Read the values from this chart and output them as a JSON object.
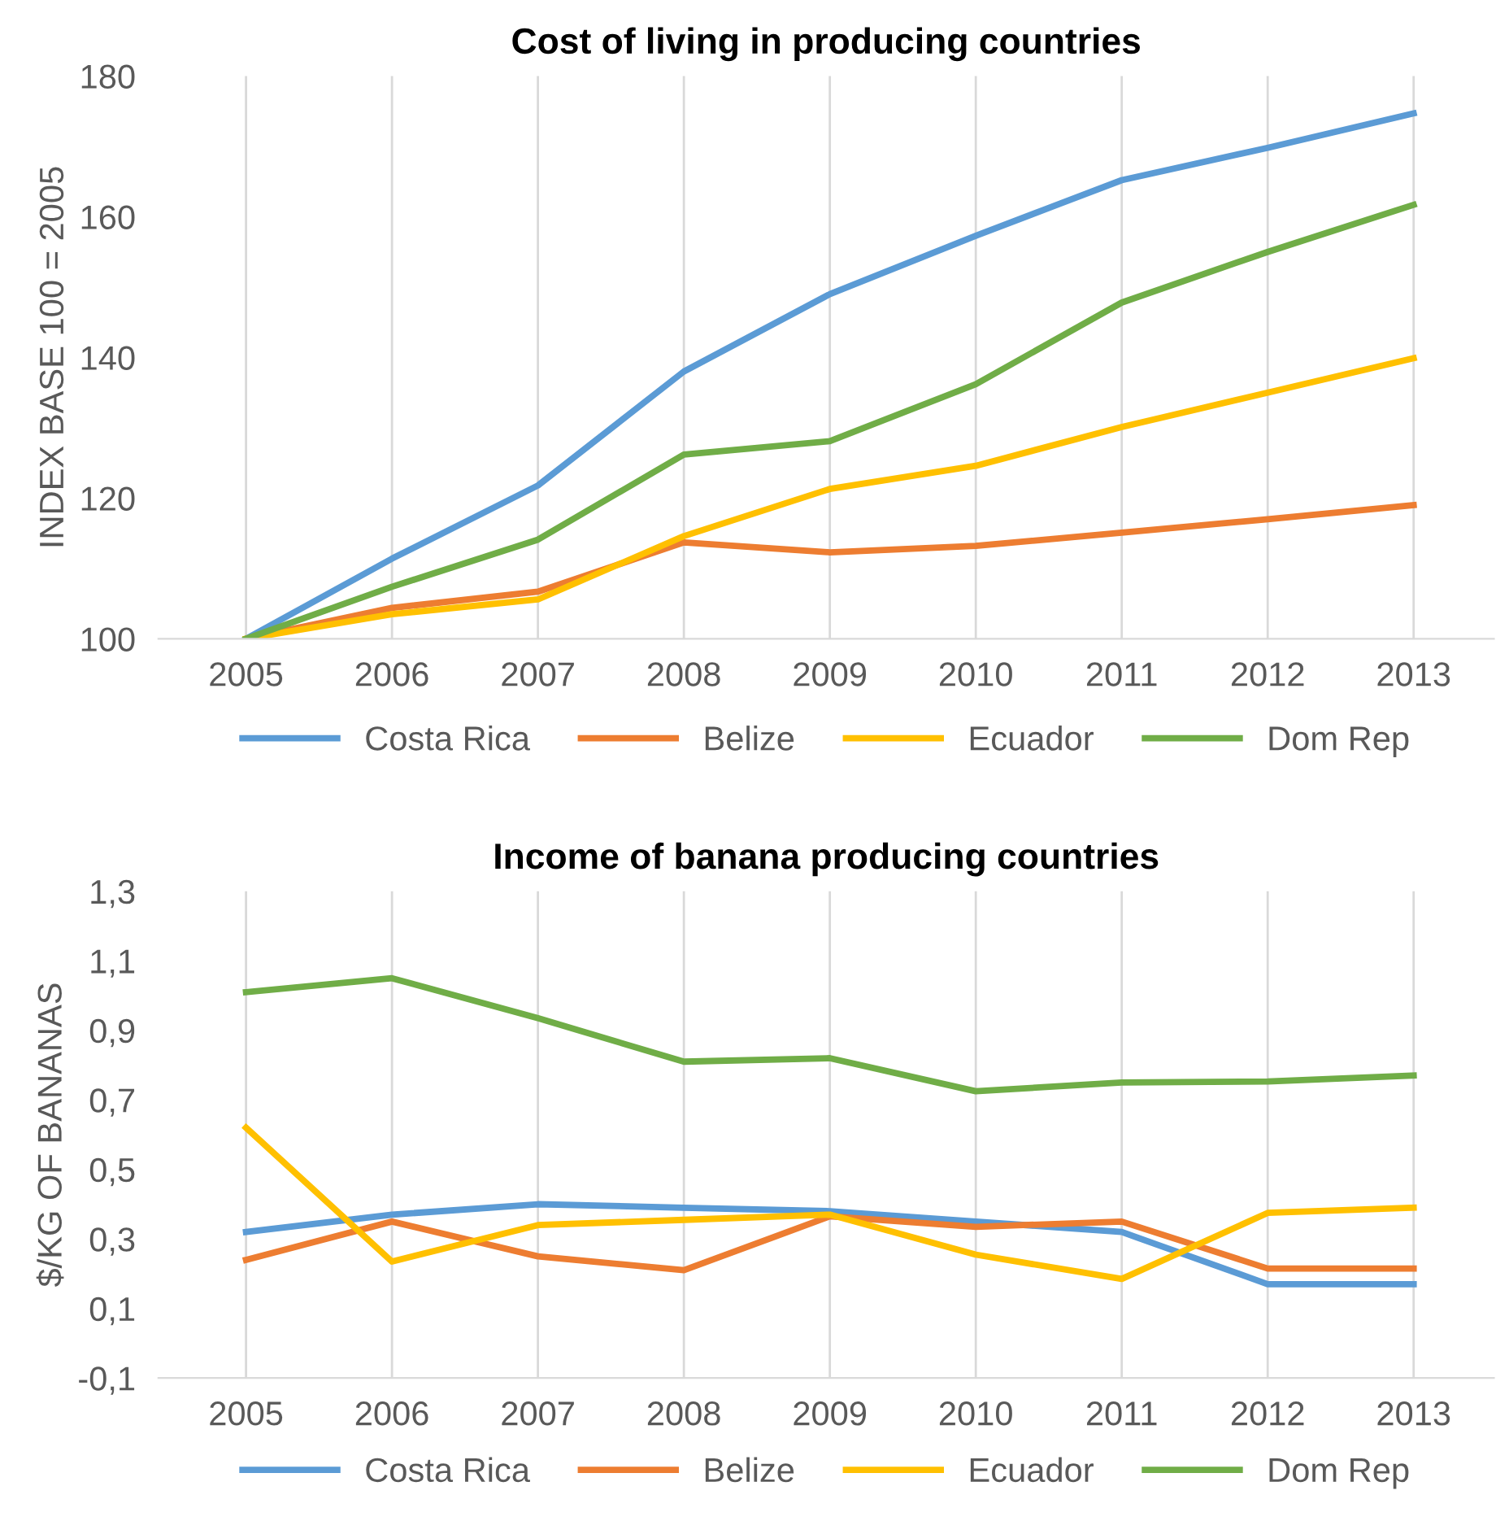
{
  "chart_data": [
    {
      "type": "line",
      "title": "Cost of living in producing countries",
      "ylabel": "INDEX BASE 100 = 2005",
      "categories": [
        "2005",
        "2006",
        "2007",
        "2008",
        "2009",
        "2010",
        "2011",
        "2012",
        "2013"
      ],
      "series": [
        {
          "name": "Costa Rica",
          "color": "#5b9bd5",
          "values": [
            100,
            111.4,
            121.8,
            138,
            149,
            157.3,
            165.2,
            169.8,
            174.7
          ]
        },
        {
          "name": "Belize",
          "color": "#ed7d31",
          "values": [
            100,
            104.4,
            106.7,
            113.7,
            112.3,
            113.2,
            115.1,
            117,
            119
          ]
        },
        {
          "name": "Ecuador",
          "color": "#ffc000",
          "values": [
            100,
            103.5,
            105.6,
            114.6,
            121.3,
            124.6,
            130.1,
            135,
            139.9
          ]
        },
        {
          "name": "Dom Rep",
          "color": "#70ad47",
          "values": [
            100,
            107.4,
            114.1,
            126.2,
            128.1,
            136.2,
            147.8,
            155,
            161.7
          ]
        }
      ],
      "ylim": [
        100,
        180
      ],
      "yticks": [
        100,
        120,
        140,
        160,
        180
      ],
      "grid": "x",
      "legend": "bottom",
      "marker": "none",
      "line_style": "solid"
    },
    {
      "type": "line",
      "title": "Income of banana producing countries",
      "ylabel": "$/KG OF BANANAS",
      "categories": [
        "2005",
        "2006",
        "2007",
        "2008",
        "2009",
        "2010",
        "2011",
        "2012",
        "2013"
      ],
      "series": [
        {
          "name": "Costa Rica",
          "color": "#5b9bd5",
          "values": [
            0.32,
            0.37,
            0.4,
            0.39,
            0.38,
            0.35,
            0.32,
            0.17,
            0.17
          ]
        },
        {
          "name": "Belize",
          "color": "#ed7d31",
          "values": [
            0.24,
            0.35,
            0.25,
            0.21,
            0.365,
            0.335,
            0.35,
            0.215,
            0.215
          ]
        },
        {
          "name": "Ecuador",
          "color": "#ffc000",
          "values": [
            0.62,
            0.235,
            0.34,
            0.355,
            0.37,
            0.255,
            0.185,
            0.375,
            0.39
          ]
        },
        {
          "name": "Dom Rep",
          "color": "#70ad47",
          "values": [
            1.01,
            1.05,
            0.935,
            0.81,
            0.82,
            0.725,
            0.75,
            0.753,
            0.77
          ]
        }
      ],
      "ylim": [
        -0.1,
        1.3
      ],
      "yticks": [
        {
          "value": -0.1,
          "label": "-0,1"
        },
        {
          "value": 0.1,
          "label": "0,1"
        },
        {
          "value": 0.3,
          "label": "0,3"
        },
        {
          "value": 0.5,
          "label": "0,5"
        },
        {
          "value": 0.7,
          "label": "0,7"
        },
        {
          "value": 0.9,
          "label": "0,9"
        },
        {
          "value": 1.1,
          "label": "1,1"
        },
        {
          "value": 1.3,
          "label": "1,3"
        }
      ],
      "grid": "x",
      "legend": "bottom",
      "marker": "none",
      "line_style": "solid"
    }
  ]
}
